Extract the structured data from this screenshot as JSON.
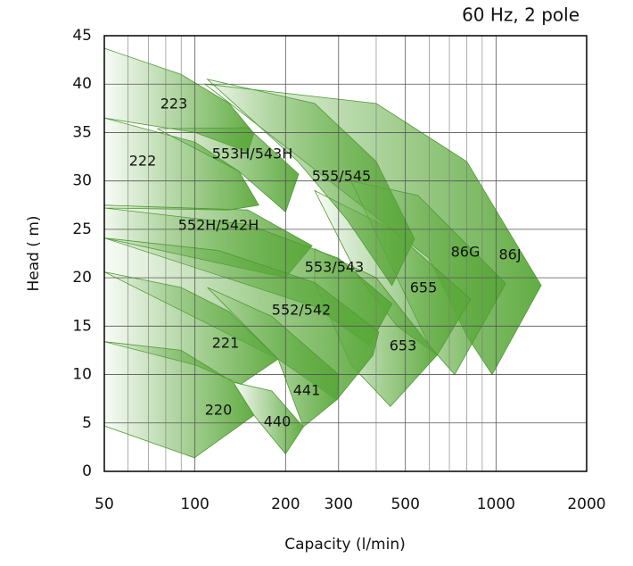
{
  "chart_data": {
    "type": "region",
    "title": "60 Hz, 2 pole",
    "x_label": "Capacity (l/min)",
    "y_label": "Head  ( m)",
    "x_scale": "log",
    "xlim": [
      50,
      2000
    ],
    "xticks": [
      50,
      100,
      200,
      300,
      500,
      1000,
      2000
    ],
    "x_minor_ticks": [
      60,
      70,
      80,
      90,
      400,
      600,
      700,
      800,
      900
    ],
    "ylim": [
      0,
      45
    ],
    "yticks": [
      0,
      5,
      10,
      15,
      20,
      25,
      30,
      35,
      40,
      45
    ],
    "grid": true,
    "color": "#5aa83a",
    "series": [
      {
        "name": "86J",
        "x": [
          108,
          400,
          800,
          1413,
          971,
          800,
          600
        ],
        "y": [
          40,
          38,
          32,
          19.2,
          10,
          14,
          22
        ]
      },
      {
        "name": "86G",
        "x": [
          330,
          550,
          1077,
          729,
          600
        ],
        "y": [
          30,
          28.5,
          19.4,
          10,
          13
        ]
      },
      {
        "name": "655",
        "x": [
          250,
          450,
          824,
          637,
          470,
          350
        ],
        "y": [
          29,
          25,
          17.8,
          12,
          15,
          20
        ]
      },
      {
        "name": "555/545",
        "x": [
          110,
          250,
          400,
          536,
          451,
          320,
          220
        ],
        "y": [
          40.5,
          38,
          32,
          24,
          19.2,
          26,
          32
        ]
      },
      {
        "name": "653",
        "x": [
          250,
          400,
          637,
          446,
          330,
          250
        ],
        "y": [
          23,
          20,
          12,
          6.7,
          11,
          19.5
        ]
      },
      {
        "name": "223",
        "x": [
          50,
          90,
          130,
          157,
          150,
          100,
          50
        ],
        "y": [
          43.7,
          41,
          38,
          34.9,
          33,
          35,
          36.5
        ]
      },
      {
        "name": "222",
        "x": [
          50,
          100,
          140,
          163,
          130,
          50
        ],
        "y": [
          36.5,
          34,
          31,
          27.5,
          27,
          27.2
        ]
      },
      {
        "name": "553H/543H",
        "x": [
          75,
          150,
          221,
          200,
          140
        ],
        "y": [
          35.4,
          35.5,
          30.7,
          26.8,
          31
        ]
      },
      {
        "name": "552H/542H",
        "x": [
          50,
          150,
          245,
          200,
          50
        ],
        "y": [
          27.5,
          27,
          23.3,
          20,
          24.1
        ]
      },
      {
        "name": "553/543",
        "x": [
          50,
          150,
          300,
          451,
          380,
          250,
          50
        ],
        "y": [
          27.2,
          25.5,
          22,
          17.3,
          13,
          17,
          24.1
        ]
      },
      {
        "name": "552/542",
        "x": [
          50,
          120,
          250,
          408,
          390,
          296,
          189,
          50
        ],
        "y": [
          24.1,
          22.8,
          19.5,
          14.4,
          12,
          7.4,
          11.6,
          20.6
        ]
      },
      {
        "name": "441",
        "x": [
          110,
          180,
          300,
          296,
          229,
          189
        ],
        "y": [
          19,
          16,
          10,
          7.4,
          4.6,
          11.6
        ]
      },
      {
        "name": "221",
        "x": [
          50,
          90,
          130,
          189,
          142,
          100,
          50
        ],
        "y": [
          20.6,
          19,
          16.5,
          11.6,
          9,
          11,
          13.4
        ]
      },
      {
        "name": "440",
        "x": [
          134,
          180,
          229,
          200,
          157
        ],
        "y": [
          9.2,
          8.3,
          4.6,
          1.8,
          5.8
        ]
      },
      {
        "name": "220",
        "x": [
          50,
          90,
          134,
          157,
          99.6,
          50
        ],
        "y": [
          13.4,
          12.5,
          9.2,
          5.8,
          1.4,
          4.7
        ]
      }
    ]
  }
}
